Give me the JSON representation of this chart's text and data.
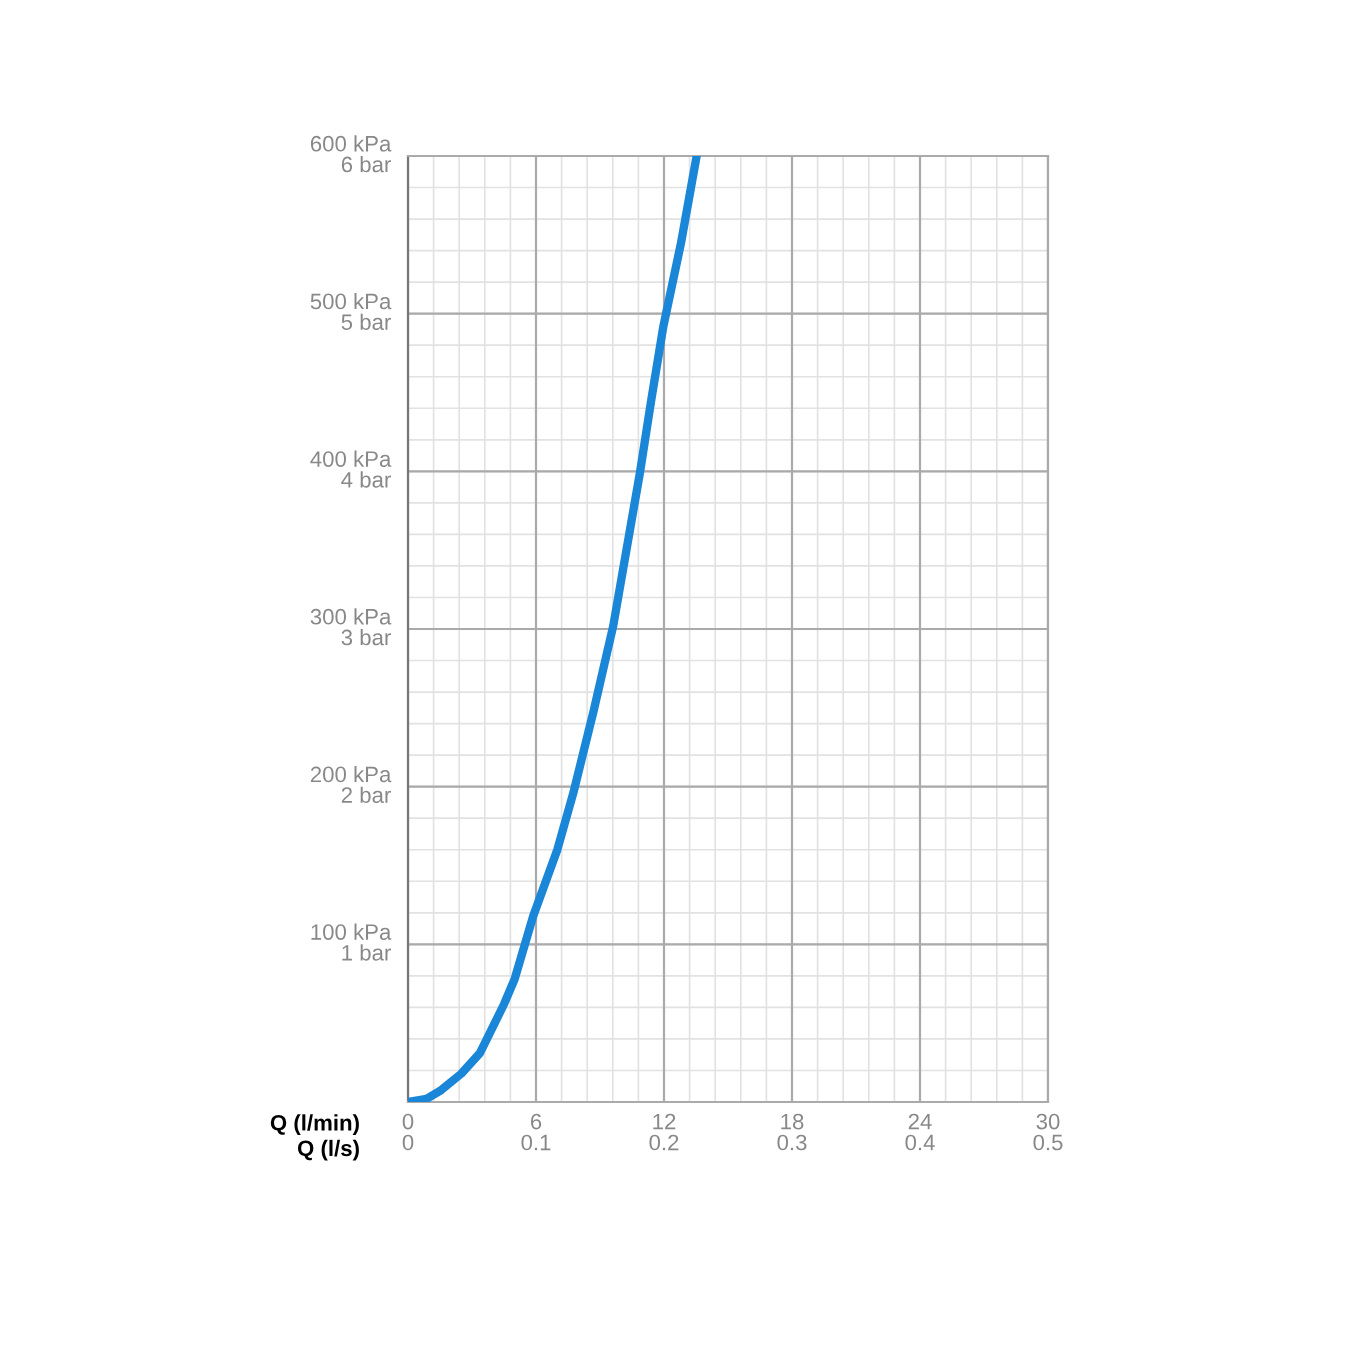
{
  "chart_data": {
    "type": "line",
    "xlabel": "Q (l/min)",
    "x2label": "Q (l/s)",
    "x": [
      0,
      0.87,
      1.5,
      2.5,
      3.37,
      4.5,
      5.0,
      5.87,
      7.0,
      7.75,
      8.7,
      9.62,
      10.87,
      11.4,
      11.97,
      12.8,
      13.53
    ],
    "series": [
      {
        "color": "#1a86d8",
        "values": [
          0,
          2,
          7,
          18,
          31,
          62,
          78,
          118,
          160,
          196,
          248,
          302,
          399,
          445,
          492,
          545,
          600
        ]
      }
    ],
    "xlim": [
      0,
      30
    ],
    "xticks": [
      0,
      6,
      12,
      18,
      24,
      30
    ],
    "x2lim": [
      0,
      0.5
    ],
    "x2ticks": [
      0,
      0.1,
      0.2,
      0.3,
      0.4,
      0.5
    ],
    "ylim": [
      0,
      600
    ],
    "yticks": [
      {
        "value": 100,
        "label": "100 kPa"
      },
      {
        "value": 200,
        "label": "200 kPa"
      },
      {
        "value": 300,
        "label": "300 kPa"
      },
      {
        "value": 400,
        "label": "400 kPa"
      },
      {
        "value": 500,
        "label": "500 kPa"
      },
      {
        "value": 600,
        "label": "600 kPa"
      }
    ],
    "y2lim": [
      0,
      6
    ],
    "y2ticks": [
      {
        "value": 1,
        "label": "1 bar"
      },
      {
        "value": 2,
        "label": "2 bar"
      },
      {
        "value": 3,
        "label": "3 bar"
      },
      {
        "value": 4,
        "label": "4 bar"
      },
      {
        "value": 5,
        "label": "5 bar"
      },
      {
        "value": 6,
        "label": "6 bar"
      }
    ],
    "grid": true,
    "legend": false,
    "marker": "none",
    "line_style": "solid"
  }
}
